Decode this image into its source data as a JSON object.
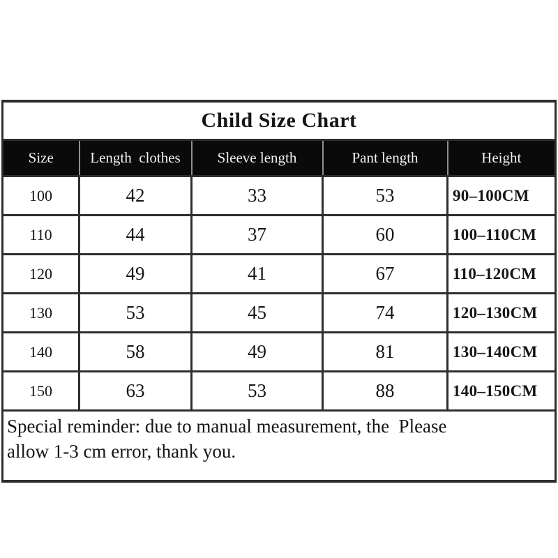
{
  "page": {
    "title": "Child Size Chart"
  },
  "table": {
    "columns": [
      "Size",
      "Length  clothes",
      "Sleeve length",
      "Pant length",
      "Height"
    ],
    "rows": [
      [
        "100",
        "42",
        "33",
        "53",
        "90–100CM"
      ],
      [
        "110",
        "44",
        "37",
        "60",
        "100–110CM"
      ],
      [
        "120",
        "49",
        "41",
        "67",
        "110–120CM"
      ],
      [
        "130",
        "53",
        "45",
        "74",
        "120–130CM"
      ],
      [
        "140",
        "58",
        "49",
        "81",
        "130–140CM"
      ],
      [
        "150",
        "63",
        "53",
        "88",
        "140–150CM"
      ]
    ]
  },
  "note": {
    "line1": "Special reminder: due to manual measurement, the  Please",
    "line2": "allow 1-3 cm error, thank you."
  },
  "colors": {
    "background": "#ffffff",
    "header_bg": "#0a0a0a",
    "header_text": "#f2f2f2",
    "border": "#2e2e2e",
    "text": "#151515"
  }
}
